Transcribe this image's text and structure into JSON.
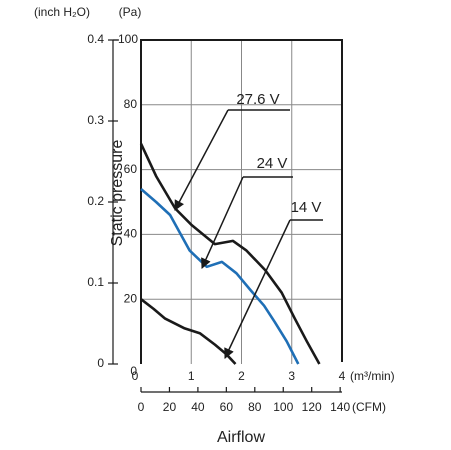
{
  "chart_data": {
    "type": "line",
    "y_label": "Static pressure",
    "x_label": "Airflow",
    "y_unit": "(Pa)",
    "y2_unit": "(inch H₂O)",
    "x_unit": "(m³/min)",
    "x2_unit": "(CFM)",
    "xlim": [
      0,
      4
    ],
    "xticks": [
      0,
      1,
      2,
      3,
      4
    ],
    "x2lim": [
      0,
      141.3
    ],
    "x2ticks": [
      0,
      20,
      40,
      60,
      80,
      100,
      120,
      140
    ],
    "ylim": [
      0,
      100
    ],
    "yticks": [
      0,
      20,
      40,
      60,
      80,
      100
    ],
    "y2lim": [
      0,
      0.4
    ],
    "y2ticks": [
      0,
      0.1,
      0.2,
      0.3,
      0.4
    ],
    "grid": true,
    "series": [
      {
        "name": "27.6 V",
        "color": "#1a1a1a",
        "x": [
          0,
          0.3,
          0.68,
          1.0,
          1.47,
          1.83,
          2.1,
          2.47,
          2.8,
          3.06,
          3.3,
          3.55
        ],
        "y": [
          68,
          58,
          48,
          43,
          37,
          38,
          35,
          29,
          22,
          14,
          7,
          0
        ]
      },
      {
        "name": "24 V",
        "color": "#1f6fb6",
        "x": [
          0,
          0.3,
          0.58,
          0.97,
          1.31,
          1.61,
          1.9,
          2.17,
          2.45,
          2.66,
          2.9,
          3.13
        ],
        "y": [
          54,
          50,
          46,
          35,
          30,
          31.5,
          28,
          23,
          18,
          13,
          7,
          0
        ]
      },
      {
        "name": "14 V",
        "color": "#1a1a1a",
        "x": [
          0,
          0.25,
          0.48,
          0.87,
          1.17,
          1.47,
          1.7,
          1.88
        ],
        "y": [
          20,
          17,
          14,
          11,
          9.5,
          6,
          3,
          0
        ]
      }
    ]
  }
}
